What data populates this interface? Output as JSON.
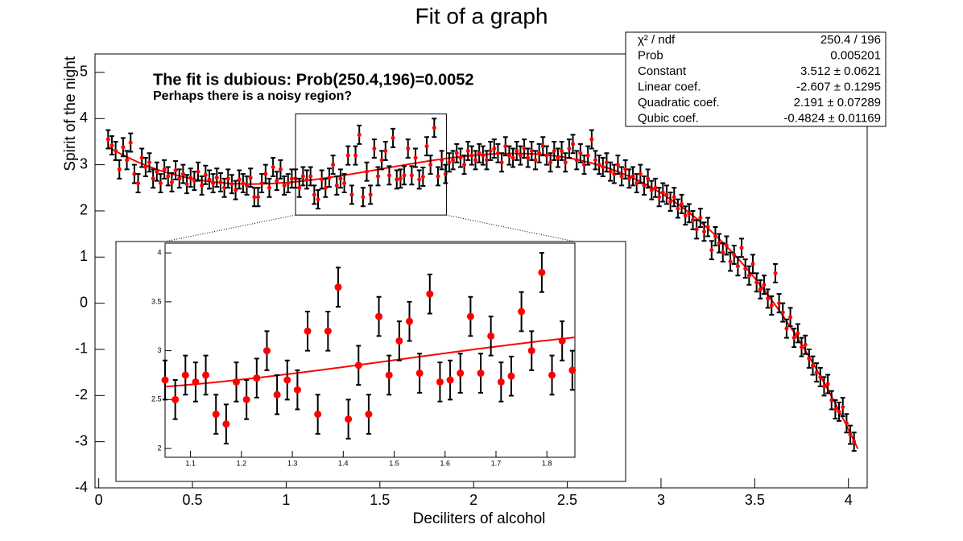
{
  "chart_data": {
    "type": "scatter",
    "title": "Fit of a graph",
    "x_label": "Deciliters of alcohol",
    "y_label": "Spirit of the night",
    "annotations": [
      "The fit is dubious: Prob(250.4,196)=0.0052",
      "Perhaps there is a noisy region?"
    ],
    "xlim": [
      -0.02,
      4.1
    ],
    "ylim": [
      -4,
      5.4
    ],
    "xticks": [
      0,
      0.5,
      1,
      1.5,
      2,
      2.5,
      3,
      3.5,
      4
    ],
    "yticks": [
      -4,
      -3,
      -2,
      -1,
      0,
      1,
      2,
      3,
      4,
      5
    ],
    "x": [
      0.05,
      0.07,
      0.09,
      0.11,
      0.13,
      0.15,
      0.17,
      0.19,
      0.21,
      0.23,
      0.25,
      0.27,
      0.29,
      0.31,
      0.33,
      0.35,
      0.37,
      0.39,
      0.41,
      0.43,
      0.45,
      0.47,
      0.49,
      0.51,
      0.53,
      0.55,
      0.57,
      0.59,
      0.61,
      0.63,
      0.65,
      0.67,
      0.69,
      0.71,
      0.73,
      0.75,
      0.77,
      0.79,
      0.81,
      0.83,
      0.85,
      0.87,
      0.89,
      0.91,
      0.93,
      0.95,
      0.97,
      0.99,
      1.01,
      1.03,
      1.05,
      1.07,
      1.09,
      1.11,
      1.13,
      1.15,
      1.17,
      1.19,
      1.21,
      1.23,
      1.25,
      1.27,
      1.29,
      1.31,
      1.33,
      1.35,
      1.37,
      1.39,
      1.41,
      1.43,
      1.45,
      1.47,
      1.49,
      1.51,
      1.53,
      1.55,
      1.57,
      1.59,
      1.61,
      1.63,
      1.65,
      1.67,
      1.69,
      1.71,
      1.73,
      1.75,
      1.77,
      1.79,
      1.81,
      1.83,
      1.85,
      1.87,
      1.89,
      1.91,
      1.93,
      1.95,
      1.97,
      1.99,
      2.01,
      2.03,
      2.05,
      2.07,
      2.09,
      2.11,
      2.13,
      2.15,
      2.17,
      2.19,
      2.21,
      2.23,
      2.25,
      2.27,
      2.29,
      2.31,
      2.33,
      2.35,
      2.37,
      2.39,
      2.41,
      2.43,
      2.45,
      2.47,
      2.49,
      2.51,
      2.53,
      2.55,
      2.57,
      2.59,
      2.61,
      2.63,
      2.65,
      2.67,
      2.69,
      2.71,
      2.73,
      2.75,
      2.77,
      2.79,
      2.81,
      2.83,
      2.85,
      2.87,
      2.89,
      2.91,
      2.93,
      2.95,
      2.97,
      2.99,
      3.01,
      3.03,
      3.05,
      3.07,
      3.09,
      3.11,
      3.13,
      3.15,
      3.17,
      3.19,
      3.21,
      3.23,
      3.25,
      3.27,
      3.29,
      3.31,
      3.33,
      3.35,
      3.37,
      3.39,
      3.41,
      3.43,
      3.45,
      3.47,
      3.49,
      3.51,
      3.53,
      3.55,
      3.57,
      3.59,
      3.61,
      3.63,
      3.65,
      3.67,
      3.69,
      3.71,
      3.73,
      3.75,
      3.77,
      3.79,
      3.81,
      3.83,
      3.85,
      3.87,
      3.89,
      3.91,
      3.93,
      3.95,
      3.97,
      3.99,
      4.01,
      4.03
    ],
    "series": [
      {
        "color": "#ff0000",
        "error": 0.2,
        "values": [
          3.55,
          3.42,
          3.3,
          2.9,
          3.38,
          3.1,
          3.48,
          2.8,
          2.6,
          3.15,
          2.95,
          3.05,
          2.7,
          2.85,
          2.6,
          2.9,
          2.75,
          2.62,
          2.88,
          2.7,
          2.8,
          2.58,
          2.72,
          2.65,
          2.85,
          2.55,
          2.78,
          2.68,
          2.6,
          2.72,
          2.62,
          2.5,
          2.7,
          2.58,
          2.45,
          2.68,
          2.6,
          2.55,
          2.72,
          2.3,
          2.3,
          2.6,
          2.8,
          2.5,
          2.95,
          2.65,
          2.9,
          2.55,
          2.6,
          2.7,
          2.7,
          2.5,
          2.75,
          2.68,
          2.75,
          2.35,
          2.25,
          2.68,
          2.5,
          2.72,
          3.0,
          2.55,
          2.7,
          2.6,
          3.2,
          2.35,
          3.2,
          3.65,
          2.3,
          2.85,
          2.35,
          3.35,
          2.75,
          3.1,
          3.3,
          2.77,
          3.58,
          2.68,
          2.7,
          2.77,
          3.35,
          2.77,
          3.15,
          2.68,
          2.74,
          3.4,
          3.0,
          3.8,
          2.75,
          3.1,
          2.8,
          3.05,
          3.1,
          3.25,
          3.15,
          3.0,
          3.3,
          3.2,
          3.1,
          3.25,
          3.2,
          3.1,
          3.3,
          3.35,
          3.25,
          3.05,
          3.4,
          3.2,
          3.15,
          3.3,
          3.2,
          3.35,
          3.15,
          3.3,
          3.1,
          3.25,
          3.4,
          3.2,
          3.05,
          3.3,
          3.15,
          3.3,
          3.05,
          3.35,
          3.45,
          3.1,
          3.25,
          3.0,
          3.2,
          3.55,
          3.1,
          3.0,
          2.95,
          3.05,
          2.85,
          2.8,
          3.0,
          2.75,
          2.9,
          2.7,
          2.75,
          2.6,
          2.8,
          2.55,
          2.7,
          2.45,
          2.5,
          2.3,
          2.4,
          2.35,
          2.2,
          2.3,
          2.05,
          2.15,
          1.9,
          1.95,
          1.8,
          1.6,
          1.85,
          1.55,
          1.65,
          1.15,
          1.45,
          1.3,
          1.1,
          1.25,
          0.9,
          1.05,
          0.8,
          1.2,
          0.75,
          0.6,
          0.85,
          0.45,
          0.3,
          0.4,
          0.1,
          -0.05,
          0.65,
          0.0,
          -0.2,
          -0.55,
          -0.3,
          -0.75,
          -0.65,
          -0.95,
          -0.9,
          -1.2,
          -1.35,
          -1.5,
          -1.6,
          -1.8,
          -1.75,
          -2.1,
          -2.3,
          -2.35,
          -2.25,
          -2.6,
          -2.85,
          -3.0
        ]
      }
    ],
    "fit": {
      "color": "#ff0000",
      "xlim": [
        0.05,
        4.05
      ],
      "params": [
        {
          "name": "Constant",
          "value": 3.512,
          "error": 0.0621,
          "label": "3.512 ± 0.0621"
        },
        {
          "name": "Linear coef.",
          "value": -2.607,
          "error": 0.1295,
          "label": "-2.607 ± 0.1295"
        },
        {
          "name": "Quadratic coef.",
          "value": 2.191,
          "error": 0.07289,
          "label": "2.191 ± 0.07289"
        },
        {
          "name": "Qubic coef.",
          "value": -0.4824,
          "error": 0.01169,
          "label": "-0.4824 ± 0.01169"
        }
      ]
    },
    "stats": [
      {
        "label": "χ² / ndf",
        "value": "250.4 / 196"
      },
      {
        "label": "Prob",
        "value": "0.005201"
      }
    ],
    "inset": {
      "xlim": [
        1.05,
        1.855
      ],
      "ylim": [
        1.91,
        4.1
      ],
      "xticks": [
        1.1,
        1.2,
        1.3,
        1.4,
        1.5,
        1.6,
        1.7,
        1.8
      ],
      "yticks": [
        2,
        2.5,
        3,
        3.5,
        4
      ]
    }
  }
}
